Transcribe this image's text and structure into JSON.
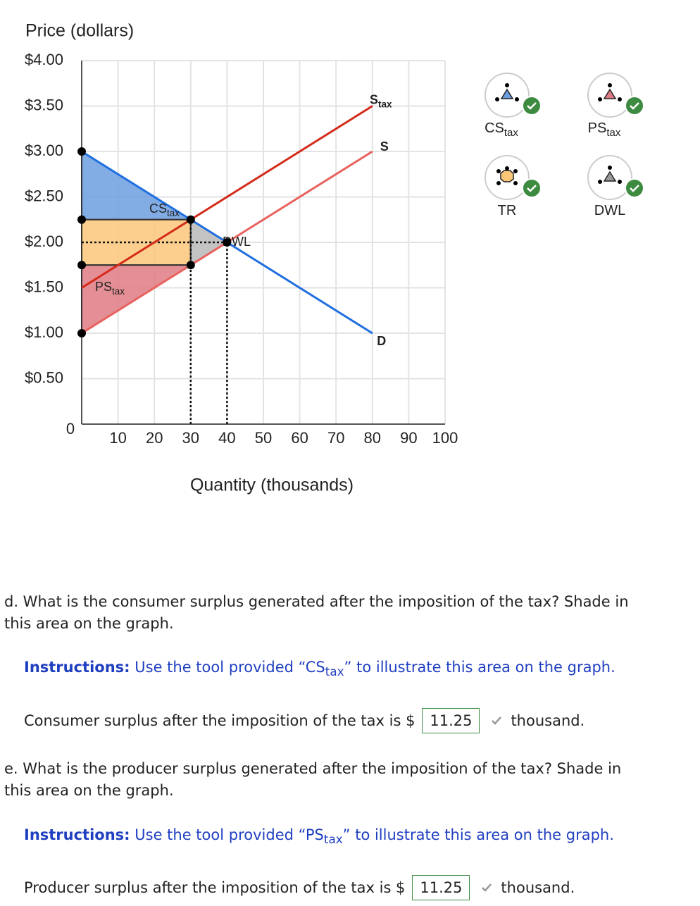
{
  "chart_data": {
    "type": "line",
    "y_label": "Price (dollars)",
    "x_label": "Quantity (thousands)",
    "xlim": [
      0,
      100
    ],
    "xticks": [
      10,
      20,
      30,
      40,
      50,
      60,
      70,
      80,
      90,
      100
    ],
    "ylim": [
      0,
      4
    ],
    "yticks": [
      0,
      {
        "value": 0.5,
        "label": "$0.50"
      },
      {
        "value": 1,
        "label": "$1.00"
      },
      {
        "value": 1.5,
        "label": "$1.50"
      },
      {
        "value": 2,
        "label": "$2.00"
      },
      {
        "value": 2.5,
        "label": "$2.50"
      },
      {
        "value": 3,
        "label": "$3.00"
      },
      {
        "value": 3.5,
        "label": "$3.50"
      },
      {
        "value": 4,
        "label": "$4.00"
      }
    ],
    "grid": true,
    "series": [
      {
        "name": "D",
        "color": "#1f6fe0",
        "x": [
          0,
          80
        ],
        "values": [
          3,
          1
        ]
      },
      {
        "name": "S",
        "color": "#e8615e",
        "x": [
          0,
          80
        ],
        "values": [
          1,
          3
        ]
      },
      {
        "name": "S",
        "sub": "tax",
        "color": "#d42a1a",
        "x": [
          0,
          80
        ],
        "values": [
          1.5,
          3.5
        ]
      }
    ],
    "areas": [
      {
        "name": "CS",
        "sub": "tax",
        "color": "#6b9ddf",
        "x": [
          0,
          30,
          0
        ],
        "y": [
          3,
          2.25,
          2.25
        ]
      },
      {
        "color": "#fdc77a",
        "x": [
          0,
          30,
          30,
          0
        ],
        "y": [
          2.25,
          2.25,
          1.75,
          1.75
        ]
      },
      {
        "name": "PS",
        "sub": "tax",
        "color": "#df7b82",
        "x": [
          0,
          30,
          0
        ],
        "y": [
          1.75,
          1.75,
          1
        ]
      },
      {
        "name": "DWL",
        "color": "#b8b8b8",
        "x": [
          30,
          40,
          30
        ],
        "y": [
          2.25,
          2,
          1.75
        ]
      }
    ],
    "points": {
      "x": [
        0,
        0,
        0,
        0,
        30,
        30,
        40
      ],
      "y": [
        3,
        2.25,
        1.75,
        1,
        2.25,
        1.75,
        2
      ]
    },
    "guides": [
      {
        "x": [
          0,
          40
        ],
        "y": [
          2,
          2
        ]
      },
      {
        "x": [
          30,
          30
        ],
        "y": [
          0,
          2.25
        ]
      },
      {
        "x": [
          40,
          40
        ],
        "y": [
          0,
          2
        ]
      }
    ]
  },
  "tools": [
    {
      "name": "CS",
      "sub": "tax",
      "color": "#6b9ddf"
    },
    {
      "name": "PS",
      "sub": "tax",
      "color": "#df7b82"
    },
    {
      "name": "TR",
      "color": "#fdc77a"
    },
    {
      "name": "DWL",
      "color": "#9a9a9a"
    }
  ],
  "questions": [
    {
      "lines": [
        "d. What is the consumer surplus generated after the imposition of the tax? Shade in",
        "this area on the graph."
      ],
      "instructions_lead": "Instructions:",
      "instructions_pre": "Use the tool provided “",
      "instructions_main": "CS",
      "instructions_sub": "tax",
      "instructions_post": "” to illustrate this area on the graph.",
      "answer_pre": "Consumer surplus after the imposition of the tax is $",
      "answer": 11.25,
      "answer_post": "thousand."
    },
    {
      "lines": [
        "e. What is the producer surplus generated after the imposition of the tax? Shade in",
        "this area on the graph."
      ],
      "instructions_lead": "Instructions:",
      "instructions_pre": "Use the tool provided “",
      "instructions_main": "PS",
      "instructions_sub": "tax",
      "instructions_post": "” to illustrate this area on the graph.",
      "answer_pre": "Producer surplus after the imposition of the tax is $",
      "answer": 11.25,
      "answer_post": "thousand."
    }
  ]
}
